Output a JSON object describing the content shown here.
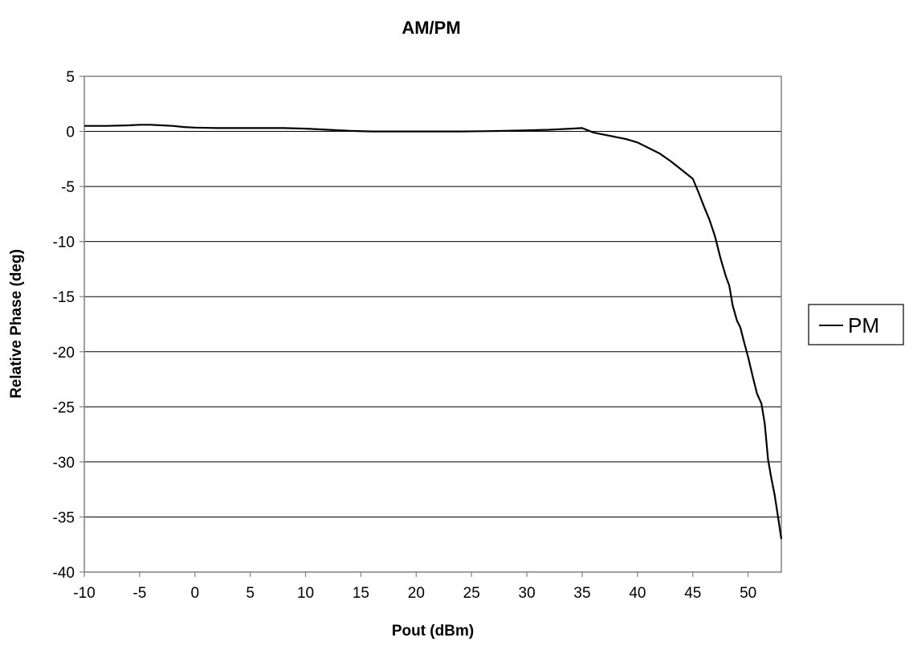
{
  "chart_data": {
    "type": "line",
    "title": "AM/PM",
    "xlabel": "Pout (dBm)",
    "ylabel": "Relative Phase (deg)",
    "xlim": [
      -10,
      53
    ],
    "ylim": [
      -40,
      5
    ],
    "xticks": [
      -10,
      -5,
      0,
      5,
      10,
      15,
      20,
      25,
      30,
      35,
      40,
      45,
      50
    ],
    "yticks": [
      5,
      0,
      -5,
      -10,
      -15,
      -20,
      -25,
      -30,
      -35,
      -40
    ],
    "grid": "horizontal",
    "legend_position": "right",
    "series": [
      {
        "name": "PM",
        "color": "#000000",
        "x": [
          -10,
          -8,
          -6,
          -5,
          -4,
          -3,
          -2,
          -1,
          0,
          2,
          4,
          6,
          8,
          10,
          12,
          14,
          16,
          18,
          20,
          22,
          24,
          26,
          28,
          30,
          32,
          33,
          34,
          35,
          35.5,
          36,
          37,
          38,
          39,
          40,
          41,
          42,
          43,
          44,
          45,
          45.5,
          46,
          46.5,
          47,
          47.5,
          48,
          48.3,
          48.6,
          49,
          49.3,
          49.6,
          50,
          50.4,
          50.8,
          51.2,
          51.5,
          51.8,
          52.1,
          52.4,
          52.7,
          53
        ],
        "y": [
          0.5,
          0.5,
          0.55,
          0.6,
          0.6,
          0.55,
          0.5,
          0.4,
          0.35,
          0.3,
          0.3,
          0.3,
          0.3,
          0.25,
          0.15,
          0.05,
          0.0,
          0.0,
          0.0,
          0.0,
          0.0,
          0.02,
          0.05,
          0.1,
          0.15,
          0.2,
          0.25,
          0.3,
          0.1,
          -0.1,
          -0.3,
          -0.5,
          -0.7,
          -1.0,
          -1.5,
          -2.0,
          -2.7,
          -3.5,
          -4.3,
          -5.5,
          -6.8,
          -8.0,
          -9.5,
          -11.5,
          -13.2,
          -14.0,
          -15.8,
          -17.2,
          -17.8,
          -19.0,
          -20.5,
          -22.2,
          -23.8,
          -24.7,
          -26.5,
          -29.8,
          -31.5,
          -33.0,
          -35.0,
          -37.0
        ]
      }
    ]
  }
}
